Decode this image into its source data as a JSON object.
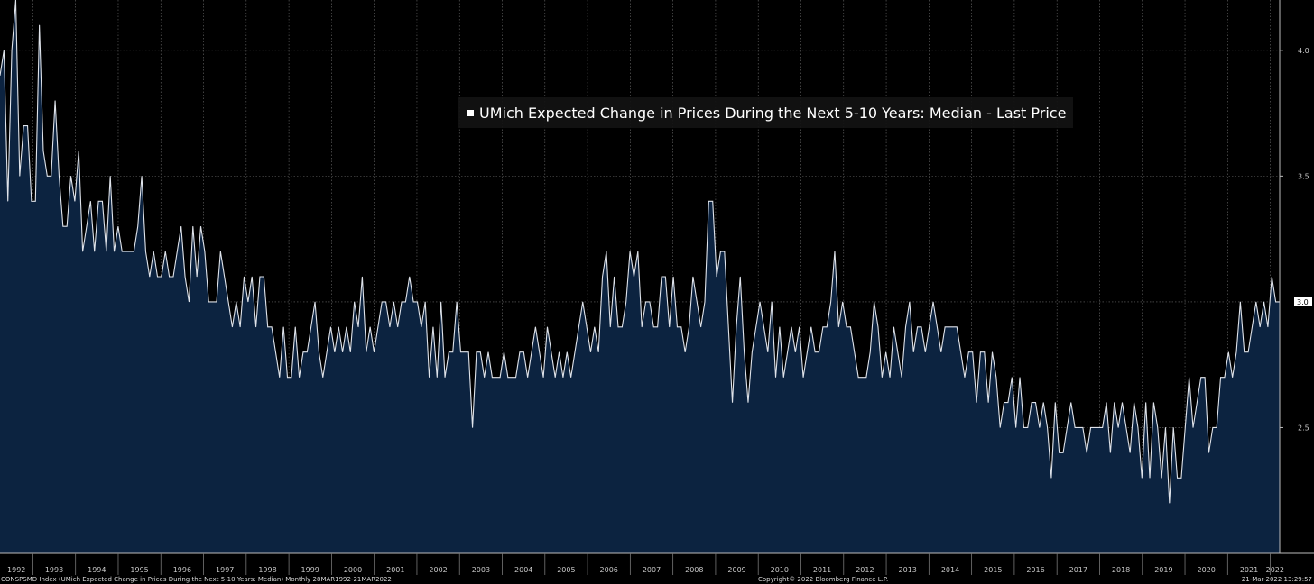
{
  "chart_data": {
    "type": "area",
    "title": "UMich Expected Change in Prices During the Next 5-10 Years: Median - Last Price",
    "series_name": "UMich Expected Change in Prices During the Next 5-10 Years: Median - Last Price",
    "xlabel": "",
    "ylabel": "",
    "ylim": [
      2.0,
      4.2
    ],
    "yticks": [
      "2.5",
      "3.5",
      "4.0"
    ],
    "last_value_label": "3.0",
    "last_value": 3.0,
    "x_start_year": 1992.23,
    "x_end_year": 2022.22,
    "years": [
      "1992",
      "1993",
      "1994",
      "1995",
      "1996",
      "1997",
      "1998",
      "1999",
      "2000",
      "2001",
      "2002",
      "2003",
      "2004",
      "2005",
      "2006",
      "2007",
      "2008",
      "2009",
      "2010",
      "2011",
      "2012",
      "2013",
      "2014",
      "2015",
      "2016",
      "2017",
      "2018",
      "2019",
      "2020",
      "2021",
      "2022"
    ],
    "grid": true,
    "colors": {
      "line": "#dfe3ea",
      "fill": "#0c2340",
      "background": "#000000",
      "grid": "#6a6a6a",
      "label": "#c8c8c8"
    },
    "values": [
      3.9,
      4.0,
      3.4,
      4.0,
      4.2,
      3.5,
      3.7,
      3.7,
      3.4,
      3.4,
      4.1,
      3.6,
      3.5,
      3.5,
      3.8,
      3.5,
      3.3,
      3.3,
      3.5,
      3.4,
      3.6,
      3.2,
      3.3,
      3.4,
      3.2,
      3.4,
      3.4,
      3.2,
      3.5,
      3.2,
      3.3,
      3.2,
      3.2,
      3.2,
      3.2,
      3.3,
      3.5,
      3.2,
      3.1,
      3.2,
      3.1,
      3.1,
      3.2,
      3.1,
      3.1,
      3.2,
      3.3,
      3.1,
      3.0,
      3.3,
      3.1,
      3.3,
      3.2,
      3.0,
      3.0,
      3.0,
      3.2,
      3.1,
      3.0,
      2.9,
      3.0,
      2.9,
      3.1,
      3.0,
      3.1,
      2.9,
      3.1,
      3.1,
      2.9,
      2.9,
      2.8,
      2.7,
      2.9,
      2.7,
      2.7,
      2.9,
      2.7,
      2.8,
      2.8,
      2.9,
      3.0,
      2.8,
      2.7,
      2.8,
      2.9,
      2.8,
      2.9,
      2.8,
      2.9,
      2.8,
      3.0,
      2.9,
      3.1,
      2.8,
      2.9,
      2.8,
      2.9,
      3.0,
      3.0,
      2.9,
      3.0,
      2.9,
      3.0,
      3.0,
      3.1,
      3.0,
      3.0,
      2.9,
      3.0,
      2.7,
      2.9,
      2.7,
      3.0,
      2.7,
      2.8,
      2.8,
      3.0,
      2.8,
      2.8,
      2.8,
      2.5,
      2.8,
      2.8,
      2.7,
      2.8,
      2.7,
      2.7,
      2.7,
      2.8,
      2.7,
      2.7,
      2.7,
      2.8,
      2.8,
      2.7,
      2.8,
      2.9,
      2.8,
      2.7,
      2.9,
      2.8,
      2.7,
      2.8,
      2.7,
      2.8,
      2.7,
      2.8,
      2.9,
      3.0,
      2.9,
      2.8,
      2.9,
      2.8,
      3.1,
      3.2,
      2.9,
      3.1,
      2.9,
      2.9,
      3.0,
      3.2,
      3.1,
      3.2,
      2.9,
      3.0,
      3.0,
      2.9,
      2.9,
      3.1,
      3.1,
      2.9,
      3.1,
      2.9,
      2.9,
      2.8,
      2.9,
      3.1,
      3.0,
      2.9,
      3.0,
      3.4,
      3.4,
      3.1,
      3.2,
      3.2,
      2.9,
      2.6,
      2.9,
      3.1,
      2.8,
      2.6,
      2.8,
      2.9,
      3.0,
      2.9,
      2.8,
      3.0,
      2.7,
      2.9,
      2.7,
      2.8,
      2.9,
      2.8,
      2.9,
      2.7,
      2.8,
      2.9,
      2.8,
      2.8,
      2.9,
      2.9,
      3.0,
      3.2,
      2.9,
      3.0,
      2.9,
      2.9,
      2.8,
      2.7,
      2.7,
      2.7,
      2.8,
      3.0,
      2.9,
      2.7,
      2.8,
      2.7,
      2.9,
      2.8,
      2.7,
      2.9,
      3.0,
      2.8,
      2.9,
      2.9,
      2.8,
      2.9,
      3.0,
      2.9,
      2.8,
      2.9,
      2.9,
      2.9,
      2.9,
      2.8,
      2.7,
      2.8,
      2.8,
      2.6,
      2.8,
      2.8,
      2.6,
      2.8,
      2.7,
      2.5,
      2.6,
      2.6,
      2.7,
      2.5,
      2.7,
      2.5,
      2.5,
      2.6,
      2.6,
      2.5,
      2.6,
      2.5,
      2.3,
      2.6,
      2.4,
      2.4,
      2.5,
      2.6,
      2.5,
      2.5,
      2.5,
      2.4,
      2.5,
      2.5,
      2.5,
      2.5,
      2.6,
      2.4,
      2.6,
      2.5,
      2.6,
      2.5,
      2.4,
      2.6,
      2.5,
      2.3,
      2.6,
      2.3,
      2.6,
      2.5,
      2.3,
      2.5,
      2.2,
      2.5,
      2.3,
      2.3,
      2.5,
      2.7,
      2.5,
      2.6,
      2.7,
      2.7,
      2.4,
      2.5,
      2.5,
      2.7,
      2.7,
      2.8,
      2.7,
      2.8,
      3.0,
      2.8,
      2.8,
      2.9,
      3.0,
      2.9,
      3.0,
      2.9,
      3.1,
      3.0,
      3.0
    ]
  },
  "footer": {
    "left": "CONSPSMD Index (UMich Expected Change in Prices During the Next 5-10 Years: Median)  Monthly 28MAR1992-21MAR2022",
    "center": "Copyright© 2022 Bloomberg Finance L.P.",
    "right": "21-Mar-2022 13:29:57"
  }
}
